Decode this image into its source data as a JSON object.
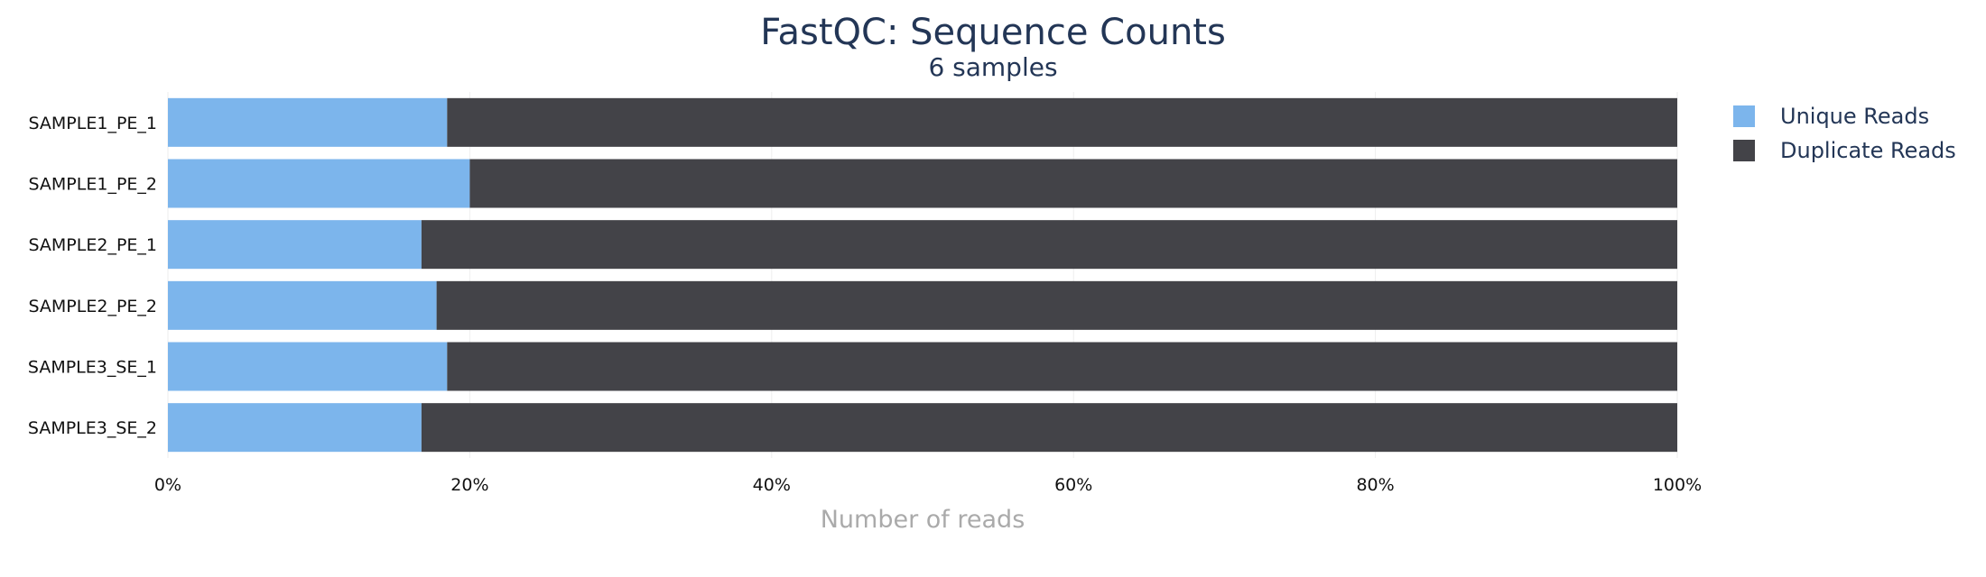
{
  "chart_data": {
    "type": "bar",
    "orientation": "horizontal",
    "stacked": true,
    "normalized": true,
    "title": "FastQC: Sequence Counts",
    "subtitle": "6 samples",
    "xlabel": "Number of reads",
    "ylabel": "",
    "categories": [
      "SAMPLE1_PE_1",
      "SAMPLE1_PE_2",
      "SAMPLE2_PE_1",
      "SAMPLE2_PE_2",
      "SAMPLE3_SE_1",
      "SAMPLE3_SE_2"
    ],
    "series": [
      {
        "name": "Unique Reads",
        "color": "#7cb5ec",
        "values": [
          18.5,
          20.0,
          16.8,
          17.8,
          18.5,
          16.8
        ]
      },
      {
        "name": "Duplicate Reads",
        "color": "#434348",
        "values": [
          81.5,
          80.0,
          83.2,
          82.2,
          81.5,
          83.2
        ]
      }
    ],
    "xlim": [
      0,
      100
    ],
    "xticks": [
      "0%",
      "20%",
      "40%",
      "60%",
      "80%",
      "100%"
    ],
    "grid": true,
    "legend_position": "top-right"
  }
}
